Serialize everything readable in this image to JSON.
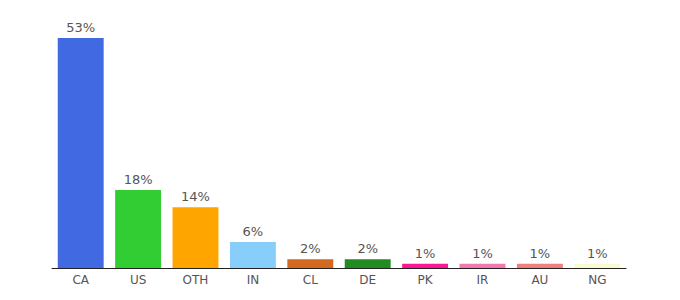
{
  "chart_data": {
    "type": "bar",
    "categories": [
      "CA",
      "US",
      "OTH",
      "IN",
      "CL",
      "DE",
      "PK",
      "IR",
      "AU",
      "NG"
    ],
    "values": [
      53,
      18,
      14,
      6,
      2,
      2,
      1,
      1,
      1,
      1
    ],
    "value_labels": [
      "53%",
      "18%",
      "14%",
      "6%",
      "2%",
      "2%",
      "1%",
      "1%",
      "1%",
      "1%"
    ],
    "colors": [
      "#4169e1",
      "#32cd32",
      "#ffa500",
      "#87cefa",
      "#d2691e",
      "#228b22",
      "#ff1493",
      "#f07ab0",
      "#f08080",
      "#fafad2"
    ],
    "ylim": [
      0,
      53
    ],
    "grid": false,
    "data_labels": true,
    "tick_labels": "x"
  }
}
